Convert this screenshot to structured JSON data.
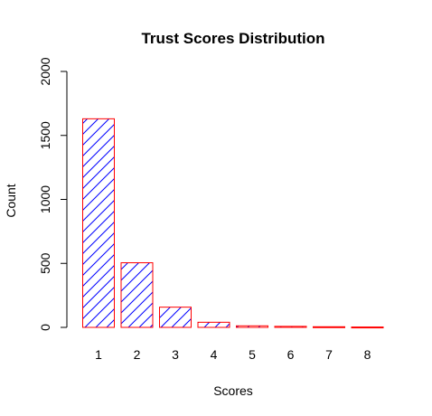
{
  "chart_data": {
    "type": "bar",
    "title": "Trust Scores Distribution",
    "xlabel": "Scores",
    "ylabel": "Count",
    "categories": [
      "1",
      "2",
      "3",
      "4",
      "5",
      "6",
      "7",
      "8"
    ],
    "values": [
      1630,
      505,
      158,
      40,
      12,
      8,
      5,
      3
    ],
    "ylim": [
      0,
      2000
    ],
    "yticks": [
      0,
      500,
      1000,
      1500,
      2000
    ],
    "grid": false,
    "legend": "none",
    "bar_fill": "hatched",
    "colors": {
      "border": "#ff0000",
      "hatch": "#0000ff"
    }
  }
}
